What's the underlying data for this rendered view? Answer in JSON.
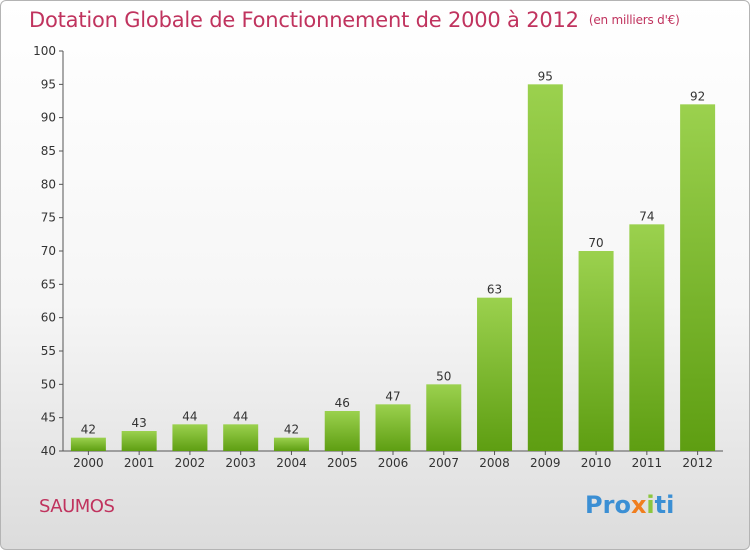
{
  "header": {
    "title": "Dotation Globale de Fonctionnement de 2000 à 2012",
    "unit": "(en milliers d'€)"
  },
  "footer": {
    "commune": "SAUMOS",
    "logo": "Proxiti",
    "logo_letters": [
      "P",
      "r",
      "o",
      "x",
      "i",
      "t",
      "i"
    ],
    "logo_colors": [
      "#3b8fd4",
      "#3b8fd4",
      "#3b8fd4",
      "#f07e1e",
      "#8cc63f",
      "#3b8fd4",
      "#3b8fd4"
    ]
  },
  "colors": {
    "title": "#c0335e",
    "bar_light": "#9bd14e",
    "bar_dark": "#5e9e12",
    "axis_text": "#333333"
  },
  "chart_data": {
    "type": "bar",
    "title": "Dotation Globale de Fonctionnement de 2000 à 2012",
    "subtitle": "(en milliers d'€)",
    "categories": [
      "2000",
      "2001",
      "2002",
      "2003",
      "2004",
      "2005",
      "2006",
      "2007",
      "2008",
      "2009",
      "2010",
      "2011",
      "2012"
    ],
    "values": [
      42,
      43,
      44,
      44,
      42,
      46,
      47,
      50,
      63,
      95,
      70,
      74,
      92
    ],
    "ylim": [
      40,
      100
    ],
    "yticks": [
      40,
      45,
      50,
      55,
      60,
      65,
      70,
      75,
      80,
      85,
      90,
      95,
      100
    ],
    "grid": false,
    "data_labels": true
  }
}
